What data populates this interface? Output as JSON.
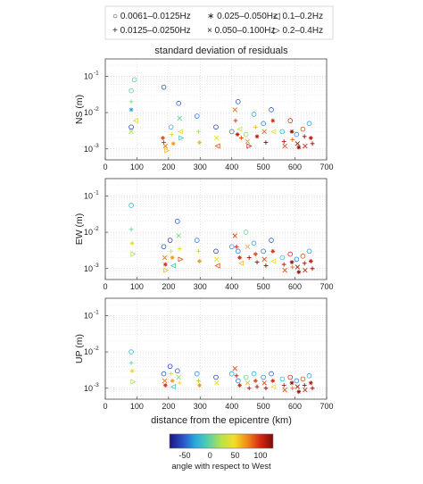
{
  "chart_data": {
    "type": "scatter",
    "title": "standard deviation of residuals",
    "legend": {
      "placement": "top",
      "entries": [
        {
          "symbol": "○",
          "label": "0.0061–0.0125Hz"
        },
        {
          "symbol": "∗",
          "label": "0.025–0.050Hz"
        },
        {
          "symbol": "◁",
          "label": "0.1–0.2Hz"
        },
        {
          "symbol": "+",
          "label": "0.0125–0.0250Hz"
        },
        {
          "symbol": "×",
          "label": "0.050–0.100Hz"
        },
        {
          "symbol": "▷",
          "label": "0.2–0.4Hz"
        }
      ]
    },
    "xlabel": "distance from the epicentre (km)",
    "xlim": [
      0,
      700
    ],
    "xticks": [
      0,
      100,
      200,
      300,
      400,
      500,
      600,
      700
    ],
    "grid": true,
    "panels": [
      {
        "ylabel": "NS (m)",
        "scale": "log",
        "ylim": [
          0.0005,
          0.3
        ],
        "yticks": [
          {
            "label": "10",
            "exp": "-1",
            "value": 0.1
          },
          {
            "label": "10",
            "exp": "-2",
            "value": 0.01
          },
          {
            "label": "10",
            "exp": "-3",
            "value": 0.001
          }
        ],
        "points": [
          [
            82,
            0.04,
            "o",
            0
          ],
          [
            82,
            0.02,
            "+",
            10
          ],
          [
            82,
            0.012,
            "*",
            -30
          ],
          [
            82,
            0.004,
            "o",
            -60
          ],
          [
            82,
            0.003,
            "x",
            20
          ],
          [
            92,
            0.08,
            "o",
            0
          ],
          [
            96,
            0.006,
            "<",
            40
          ],
          [
            185,
            0.05,
            "o",
            -55
          ],
          [
            182,
            0.002,
            "*",
            90
          ],
          [
            185,
            0.0015,
            "+",
            100
          ],
          [
            190,
            0.0012,
            "x",
            80
          ],
          [
            195,
            0.0009,
            ">",
            60
          ],
          [
            208,
            0.004,
            "o",
            -20
          ],
          [
            210,
            0.0025,
            "+",
            30
          ],
          [
            215,
            0.0014,
            "*",
            70
          ],
          [
            232,
            0.018,
            "o",
            -50
          ],
          [
            235,
            0.007,
            "x",
            0
          ],
          [
            238,
            0.003,
            "<",
            50
          ],
          [
            240,
            0.002,
            ">",
            -10
          ],
          [
            290,
            0.008,
            "o",
            -40
          ],
          [
            295,
            0.003,
            "+",
            20
          ],
          [
            298,
            0.0015,
            "*",
            60
          ],
          [
            350,
            0.004,
            "o",
            -60
          ],
          [
            352,
            0.002,
            "x",
            40
          ],
          [
            355,
            0.0012,
            "<",
            90
          ],
          [
            400,
            0.003,
            "o",
            -40
          ],
          [
            410,
            0.012,
            "x",
            80
          ],
          [
            412,
            0.006,
            "+",
            100
          ],
          [
            418,
            0.0025,
            "*",
            110
          ],
          [
            420,
            0.02,
            "o",
            -50
          ],
          [
            425,
            0.0035,
            "<",
            30
          ],
          [
            430,
            0.002,
            "+",
            90
          ],
          [
            445,
            0.0025,
            "o",
            10
          ],
          [
            450,
            0.0016,
            "x",
            70
          ],
          [
            455,
            0.0012,
            ">",
            100
          ],
          [
            470,
            0.009,
            "o",
            -30
          ],
          [
            475,
            0.004,
            "+",
            60
          ],
          [
            480,
            0.0022,
            "*",
            110
          ],
          [
            500,
            0.005,
            "o",
            -40
          ],
          [
            503,
            0.003,
            "x",
            80
          ],
          [
            508,
            0.0015,
            "+",
            120
          ],
          [
            525,
            0.012,
            "o",
            -50
          ],
          [
            530,
            0.006,
            "*",
            100
          ],
          [
            532,
            0.003,
            "<",
            40
          ],
          [
            560,
            0.003,
            "o",
            -20
          ],
          [
            565,
            0.0016,
            "+",
            110
          ],
          [
            568,
            0.0012,
            "x",
            90
          ],
          [
            585,
            0.006,
            "o",
            100
          ],
          [
            590,
            0.003,
            "*",
            120
          ],
          [
            592,
            0.0018,
            "+",
            80
          ],
          [
            605,
            0.0025,
            "o",
            -40
          ],
          [
            608,
            0.0014,
            "x",
            110
          ],
          [
            612,
            0.0011,
            "*",
            120
          ],
          [
            625,
            0.0035,
            "o",
            90
          ],
          [
            630,
            0.0022,
            "+",
            120
          ],
          [
            632,
            0.0012,
            "x",
            100
          ],
          [
            645,
            0.005,
            "o",
            -30
          ],
          [
            650,
            0.002,
            "*",
            110
          ],
          [
            655,
            0.0014,
            "+",
            120
          ]
        ]
      },
      {
        "ylabel": "EW (m)",
        "scale": "log",
        "ylim": [
          0.0005,
          0.3
        ],
        "yticks": [
          {
            "label": "10",
            "exp": "-1",
            "value": 0.1
          },
          {
            "label": "10",
            "exp": "-2",
            "value": 0.01
          },
          {
            "label": "10",
            "exp": "-3",
            "value": 0.001
          }
        ],
        "points": [
          [
            82,
            0.055,
            "o",
            -20
          ],
          [
            82,
            0.012,
            "+",
            0
          ],
          [
            85,
            0.005,
            "*",
            40
          ],
          [
            88,
            0.0025,
            ">",
            20
          ],
          [
            185,
            0.004,
            "o",
            -50
          ],
          [
            188,
            0.002,
            "x",
            80
          ],
          [
            190,
            0.0013,
            "*",
            100
          ],
          [
            192,
            0.0009,
            ">",
            60
          ],
          [
            205,
            0.006,
            "o",
            -60
          ],
          [
            208,
            0.003,
            "+",
            30
          ],
          [
            212,
            0.002,
            "*",
            70
          ],
          [
            215,
            0.0012,
            "<",
            -10
          ],
          [
            228,
            0.02,
            "o",
            -50
          ],
          [
            232,
            0.008,
            "x",
            10
          ],
          [
            235,
            0.0035,
            "+",
            50
          ],
          [
            238,
            0.0018,
            ">",
            90
          ],
          [
            290,
            0.006,
            "o",
            -40
          ],
          [
            295,
            0.003,
            "+",
            20
          ],
          [
            298,
            0.0016,
            "*",
            70
          ],
          [
            350,
            0.003,
            "o",
            -60
          ],
          [
            352,
            0.0018,
            "x",
            40
          ],
          [
            355,
            0.0012,
            "<",
            90
          ],
          [
            400,
            0.004,
            "o",
            -30
          ],
          [
            410,
            0.008,
            "x",
            90
          ],
          [
            415,
            0.004,
            "+",
            110
          ],
          [
            420,
            0.003,
            "o",
            -40
          ],
          [
            425,
            0.002,
            "*",
            100
          ],
          [
            430,
            0.0014,
            "<",
            60
          ],
          [
            445,
            0.01,
            "o",
            0
          ],
          [
            450,
            0.004,
            "x",
            60
          ],
          [
            455,
            0.002,
            "+",
            110
          ],
          [
            470,
            0.005,
            "o",
            -30
          ],
          [
            475,
            0.0025,
            "*",
            90
          ],
          [
            480,
            0.0015,
            "+",
            120
          ],
          [
            500,
            0.003,
            "o",
            -40
          ],
          [
            503,
            0.0018,
            "x",
            90
          ],
          [
            508,
            0.0012,
            "+",
            120
          ],
          [
            525,
            0.006,
            "o",
            -50
          ],
          [
            530,
            0.003,
            "*",
            100
          ],
          [
            532,
            0.0016,
            "<",
            50
          ],
          [
            560,
            0.002,
            "o",
            -20
          ],
          [
            565,
            0.0013,
            "+",
            110
          ],
          [
            568,
            0.0009,
            "x",
            90
          ],
          [
            585,
            0.0025,
            "o",
            100
          ],
          [
            590,
            0.0015,
            "*",
            120
          ],
          [
            592,
            0.0011,
            "+",
            80
          ],
          [
            605,
            0.0018,
            "o",
            -40
          ],
          [
            608,
            0.0011,
            "x",
            110
          ],
          [
            612,
            0.0008,
            "*",
            120
          ],
          [
            625,
            0.0022,
            "o",
            90
          ],
          [
            630,
            0.0014,
            "+",
            120
          ],
          [
            632,
            0.0009,
            "x",
            100
          ],
          [
            645,
            0.003,
            "o",
            -30
          ],
          [
            650,
            0.0016,
            "*",
            110
          ],
          [
            655,
            0.001,
            "+",
            120
          ]
        ]
      },
      {
        "ylabel": "UP (m)",
        "scale": "log",
        "ylim": [
          0.0005,
          0.3
        ],
        "yticks": [
          {
            "label": "10",
            "exp": "-1",
            "value": 0.1
          },
          {
            "label": "10",
            "exp": "-2",
            "value": 0.01
          },
          {
            "label": "10",
            "exp": "-3",
            "value": 0.001
          }
        ],
        "points": [
          [
            82,
            0.01,
            "o",
            -20
          ],
          [
            82,
            0.005,
            "+",
            0
          ],
          [
            85,
            0.003,
            "*",
            40
          ],
          [
            88,
            0.0015,
            ">",
            20
          ],
          [
            185,
            0.0025,
            "o",
            -50
          ],
          [
            188,
            0.0016,
            "x",
            80
          ],
          [
            190,
            0.0012,
            "*",
            100
          ],
          [
            205,
            0.004,
            "o",
            -60
          ],
          [
            208,
            0.0025,
            "+",
            30
          ],
          [
            212,
            0.0016,
            "*",
            70
          ],
          [
            215,
            0.0011,
            "<",
            -10
          ],
          [
            228,
            0.003,
            "o",
            -50
          ],
          [
            232,
            0.002,
            "x",
            10
          ],
          [
            235,
            0.0014,
            "+",
            50
          ],
          [
            290,
            0.0025,
            "o",
            -40
          ],
          [
            295,
            0.0016,
            "+",
            20
          ],
          [
            298,
            0.0012,
            "*",
            70
          ],
          [
            350,
            0.002,
            "o",
            -60
          ],
          [
            352,
            0.0014,
            "x",
            40
          ],
          [
            400,
            0.0025,
            "o",
            -30
          ],
          [
            410,
            0.0035,
            "x",
            90
          ],
          [
            415,
            0.0022,
            "+",
            110
          ],
          [
            420,
            0.0016,
            "o",
            -40
          ],
          [
            425,
            0.0012,
            "*",
            100
          ],
          [
            445,
            0.002,
            "o",
            0
          ],
          [
            450,
            0.0014,
            "x",
            60
          ],
          [
            455,
            0.001,
            "+",
            110
          ],
          [
            470,
            0.0025,
            "o",
            -30
          ],
          [
            475,
            0.0016,
            "*",
            90
          ],
          [
            480,
            0.0011,
            "+",
            120
          ],
          [
            500,
            0.002,
            "o",
            -40
          ],
          [
            503,
            0.0014,
            "x",
            90
          ],
          [
            508,
            0.001,
            "+",
            120
          ],
          [
            525,
            0.0025,
            "o",
            -50
          ],
          [
            530,
            0.0016,
            "*",
            100
          ],
          [
            532,
            0.0011,
            "<",
            50
          ],
          [
            560,
            0.0018,
            "o",
            -20
          ],
          [
            565,
            0.0012,
            "+",
            110
          ],
          [
            568,
            0.0009,
            "x",
            90
          ],
          [
            585,
            0.002,
            "o",
            100
          ],
          [
            590,
            0.0014,
            "*",
            120
          ],
          [
            592,
            0.001,
            "+",
            80
          ],
          [
            605,
            0.0016,
            "o",
            -40
          ],
          [
            608,
            0.0011,
            "x",
            110
          ],
          [
            612,
            0.0008,
            "*",
            120
          ],
          [
            625,
            0.0018,
            "o",
            90
          ],
          [
            630,
            0.0012,
            "+",
            120
          ],
          [
            632,
            0.0009,
            "x",
            100
          ],
          [
            645,
            0.0022,
            "o",
            -30
          ],
          [
            650,
            0.0014,
            "*",
            110
          ],
          [
            655,
            0.001,
            "+",
            120
          ]
        ]
      }
    ],
    "colorbar": {
      "label": "angle with respect to West",
      "ticks": [
        -50,
        0,
        50,
        100
      ],
      "range": [
        -80,
        125
      ],
      "colors": [
        "#1a1580",
        "#2b4fc4",
        "#2aa9e0",
        "#58d0a8",
        "#b8e24a",
        "#f2dd2a",
        "#f08a1c",
        "#d42a12",
        "#7a0a06"
      ]
    }
  }
}
